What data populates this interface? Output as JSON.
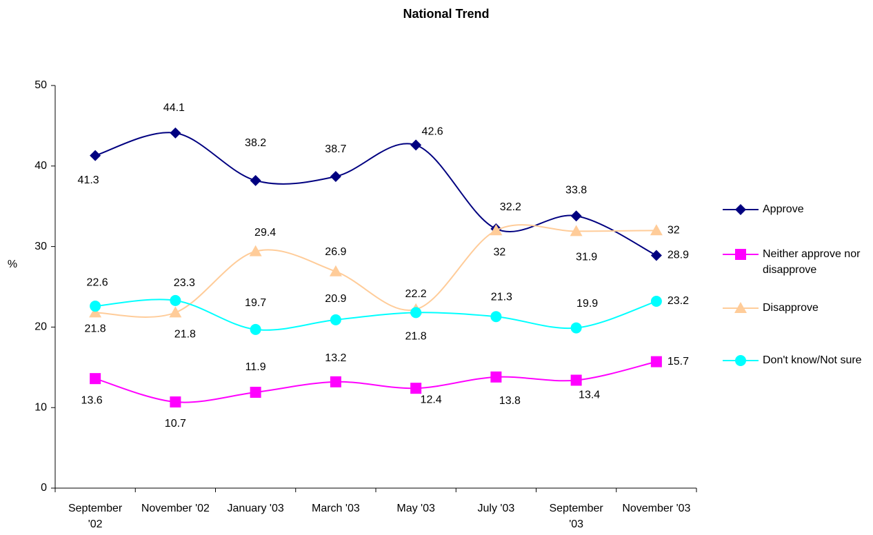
{
  "chart_data": {
    "type": "line",
    "title": "National Trend",
    "ylabel": "%",
    "categories": [
      "September '02",
      "November '02",
      "January '03",
      "March '03",
      "May '03",
      "July '03",
      "September '03",
      "November '03"
    ],
    "series": [
      {
        "name": "Approve",
        "color": "#000080",
        "marker": "diamond",
        "values": [
          41.3,
          44.1,
          38.2,
          38.7,
          42.6,
          32.2,
          33.8,
          28.9
        ]
      },
      {
        "name": "Neither approve nor disapprove",
        "color": "#ff00ff",
        "marker": "square",
        "values": [
          13.6,
          10.7,
          11.9,
          13.2,
          12.4,
          13.8,
          13.4,
          15.7
        ]
      },
      {
        "name": "Disapprove",
        "color": "#ffcc99",
        "marker": "triangle",
        "values": [
          21.8,
          21.8,
          29.4,
          26.9,
          22.2,
          32,
          31.9,
          32
        ]
      },
      {
        "name": "Don't know/Not sure",
        "color": "#00ffff",
        "marker": "circle",
        "values": [
          22.6,
          23.3,
          19.7,
          20.9,
          21.8,
          21.3,
          19.9,
          23.2
        ]
      }
    ],
    "ylim": [
      0,
      50
    ],
    "yticks": [
      0,
      10,
      20,
      30,
      40,
      50
    ],
    "grid": false,
    "legend": "right",
    "smooth": true
  }
}
